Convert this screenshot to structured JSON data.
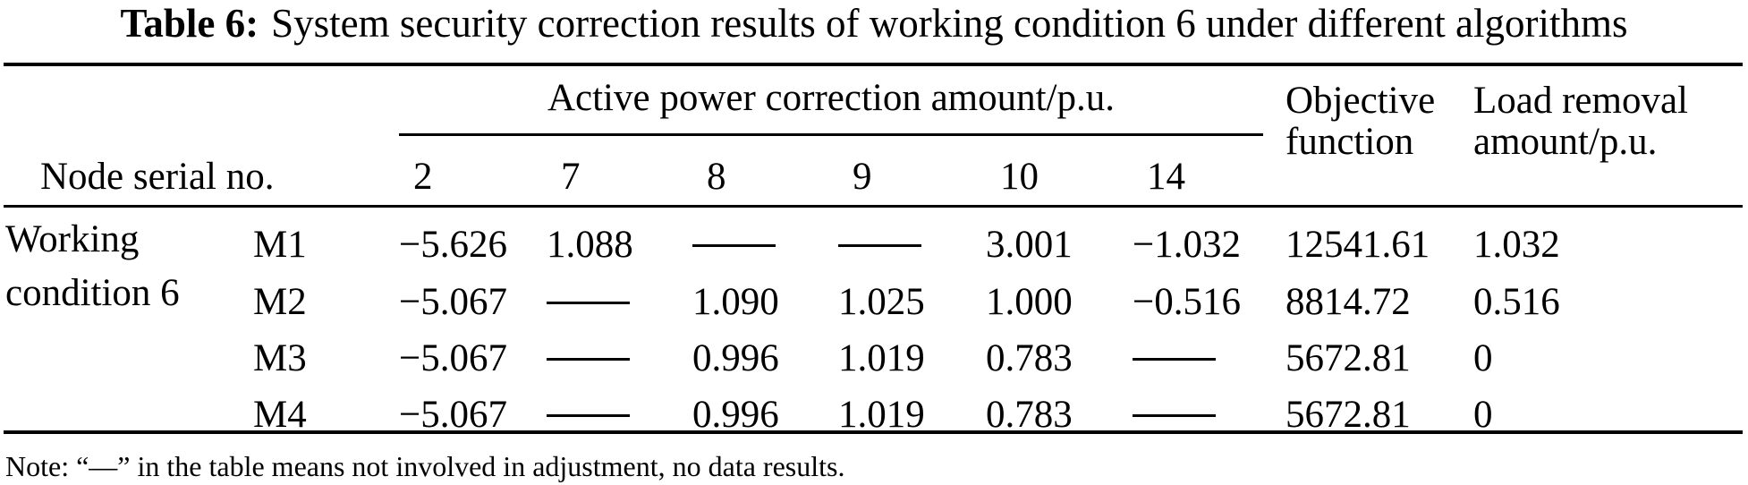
{
  "title": {
    "label": "Table 6:",
    "text": "System security correction results of working condition 6 under different algorithms"
  },
  "table": {
    "col_group_header": "Active power correction amount/p.u.",
    "row_header": "Node serial no.",
    "node_columns": [
      "2",
      "7",
      "8",
      "9",
      "10",
      "14"
    ],
    "objective_header": [
      "Objective",
      "function"
    ],
    "load_header": [
      "Load removal",
      "amount/p.u."
    ],
    "group_label": [
      "Working",
      "condition 6"
    ],
    "no_data_symbol": "——",
    "rows": [
      {
        "algorithm": "M1",
        "values": [
          "−5.626",
          "1.088",
          "——",
          "——",
          "3.001",
          "−1.032"
        ],
        "objective": "12541.61",
        "load": "1.032"
      },
      {
        "algorithm": "M2",
        "values": [
          "−5.067",
          "——",
          "1.090",
          "1.025",
          "1.000",
          "−0.516"
        ],
        "objective": "8814.72",
        "load": "0.516"
      },
      {
        "algorithm": "M3",
        "values": [
          "−5.067",
          "——",
          "0.996",
          "1.019",
          "0.783",
          "——"
        ],
        "objective": "5672.81",
        "load": "0"
      },
      {
        "algorithm": "M4",
        "values": [
          "−5.067",
          "——",
          "0.996",
          "1.019",
          "0.783",
          "——"
        ],
        "objective": "5672.81",
        "load": "0"
      }
    ]
  },
  "note": "Note: “—” in the table means not involved in adjustment, no data results."
}
